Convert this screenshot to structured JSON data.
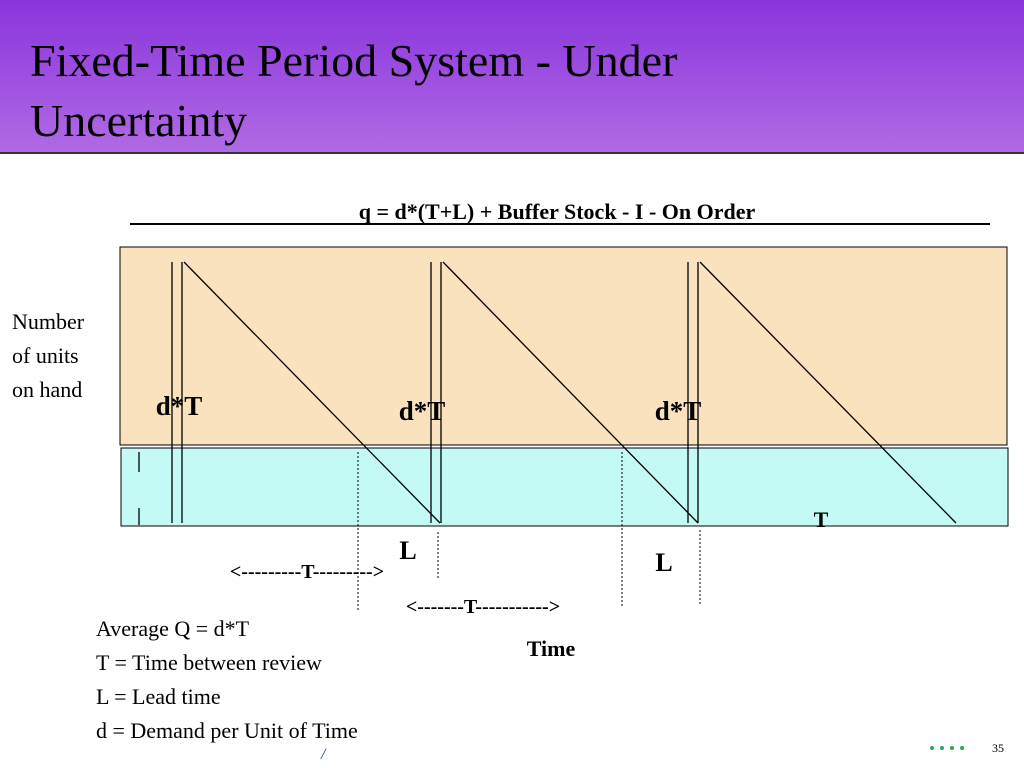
{
  "header": {
    "title_lines": [
      "Fixed-Time Period System - Under",
      "Uncertainty"
    ]
  },
  "diagram": {
    "formula": "q =  d*(T+L)  + Buffer Stock - I - On Order",
    "y_axis_label": [
      "Number",
      "of units",
      "on hand"
    ],
    "cycle_labels": [
      "d*T",
      "d*T",
      "d*T"
    ],
    "lead_labels": [
      "L",
      "L"
    ],
    "period_labels": [
      "<---------T--------->",
      "<-------T----------->"
    ],
    "t_label": "T",
    "x_axis_label": "Time"
  },
  "definitions": [
    "Average Q  = d*T",
    "T = Time between review",
    "L = Lead time",
    "d =  Demand per Unit of Time"
  ],
  "footer": {
    "mark": "/",
    "page_number": "35"
  }
}
